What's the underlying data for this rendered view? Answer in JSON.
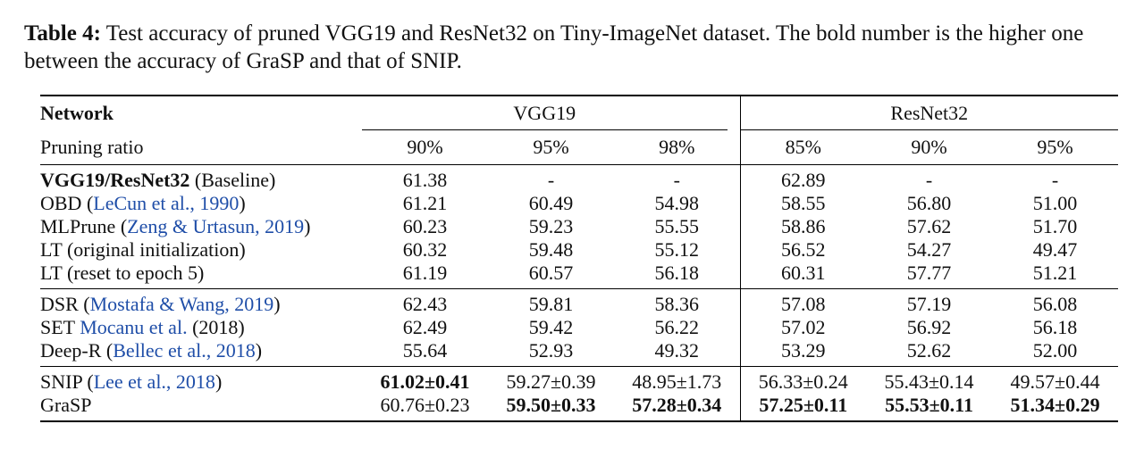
{
  "caption": {
    "label": "Table 4:",
    "text": " Test accuracy of pruned VGG19 and ResNet32 on Tiny-ImageNet dataset. The bold number is the higher one between the accuracy of GraSP and that of SNIP."
  },
  "table": {
    "network_header": "Network",
    "groups": [
      "VGG19",
      "ResNet32"
    ],
    "ratio_label": "Pruning ratio",
    "ratios": [
      "90%",
      "95%",
      "98%",
      "85%",
      "90%",
      "95%"
    ],
    "sections": [
      [
        {
          "name_bold": "VGG19/ResNet32",
          "name": " (Baseline)",
          "cite": "",
          "after": "",
          "values": [
            "61.38",
            "-",
            "-",
            "62.89",
            "-",
            "-"
          ]
        },
        {
          "name_bold": "",
          "name": "OBD (",
          "cite": "LeCun et al., 1990",
          "after": ")",
          "values": [
            "61.21",
            "60.49",
            "54.98",
            "58.55",
            "56.80",
            "51.00"
          ]
        },
        {
          "name_bold": "",
          "name": "MLPrune (",
          "cite": "Zeng & Urtasun, 2019",
          "after": ")",
          "values": [
            "60.23",
            "59.23",
            "55.55",
            "58.86",
            "57.62",
            "51.70"
          ]
        },
        {
          "name_bold": "",
          "name": "LT (original initialization)",
          "cite": "",
          "after": "",
          "values": [
            "60.32",
            "59.48",
            "55.12",
            "56.52",
            "54.27",
            "49.47"
          ]
        },
        {
          "name_bold": "",
          "name": "LT (reset to epoch 5)",
          "cite": "",
          "after": "",
          "values": [
            "61.19",
            "60.57",
            "56.18",
            "60.31",
            "57.77",
            "51.21"
          ]
        }
      ],
      [
        {
          "name_bold": "",
          "name": "DSR (",
          "cite": "Mostafa & Wang, 2019",
          "after": ")",
          "values": [
            "62.43",
            "59.81",
            "58.36",
            "57.08",
            "57.19",
            "56.08"
          ]
        },
        {
          "name_bold": "",
          "name": "SET ",
          "cite": "Mocanu et al.",
          "after": " (2018)",
          "values": [
            "62.49",
            "59.42",
            "56.22",
            "57.02",
            "56.92",
            "56.18"
          ]
        },
        {
          "name_bold": "",
          "name": "Deep-R (",
          "cite": "Bellec et al., 2018",
          "after": ")",
          "values": [
            "55.64",
            "52.93",
            "49.32",
            "53.29",
            "52.62",
            "52.00"
          ]
        }
      ],
      [
        {
          "name_bold": "",
          "name": "SNIP (",
          "cite": "Lee et al., 2018",
          "after": ")",
          "values": [
            "61.02±0.41",
            "59.27±0.39",
            "48.95±1.73",
            "56.33±0.24",
            "55.43±0.14",
            "49.57±0.44"
          ],
          "bold": [
            true,
            false,
            false,
            false,
            false,
            false
          ]
        },
        {
          "name_bold": "",
          "name": "GraSP",
          "cite": "",
          "after": "",
          "values": [
            "60.76±0.23",
            "59.50±0.33",
            "57.28±0.34",
            "57.25±0.11",
            "55.53±0.11",
            "51.34±0.29"
          ],
          "bold": [
            false,
            true,
            true,
            true,
            true,
            true
          ]
        }
      ]
    ]
  }
}
